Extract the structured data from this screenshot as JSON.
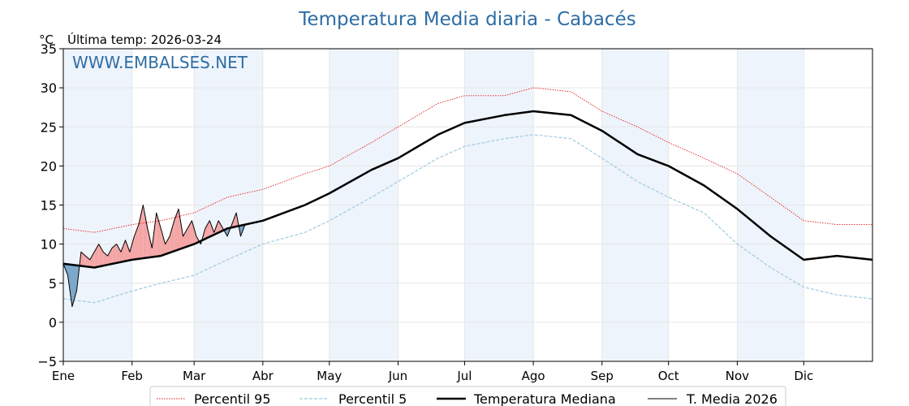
{
  "chart_data": {
    "type": "line",
    "title": "Temperatura Media diaria - Cabacés",
    "unit": "°C",
    "last_temp_label": "Última temp: 2026-03-24",
    "watermark": "WWW.EMBALSES.NET",
    "ylim": [
      -5,
      35
    ],
    "yticks": [
      -5,
      0,
      5,
      10,
      15,
      20,
      25,
      30,
      35
    ],
    "ytick_labels": [
      "−5",
      "0",
      "5",
      "10",
      "15",
      "20",
      "25",
      "30",
      "35"
    ],
    "xlim": [
      1,
      366
    ],
    "months": [
      {
        "label": "Ene",
        "day": 1
      },
      {
        "label": "Feb",
        "day": 32
      },
      {
        "label": "Mar",
        "day": 60
      },
      {
        "label": "Abr",
        "day": 91
      },
      {
        "label": "May",
        "day": 121
      },
      {
        "label": "Jun",
        "day": 152
      },
      {
        "label": "Jul",
        "day": 182
      },
      {
        "label": "Ago",
        "day": 213
      },
      {
        "label": "Sep",
        "day": 244
      },
      {
        "label": "Oct",
        "day": 274
      },
      {
        "label": "Nov",
        "day": 305
      },
      {
        "label": "Dic",
        "day": 335
      }
    ],
    "grid": true,
    "legend_position": "bottom-center",
    "colors": {
      "p95": "#e31a1c",
      "p5": "#9ecae1",
      "median": "#000000",
      "current": "#000000",
      "above_fill": "#f4a6a6",
      "below_fill": "#7ba7c9",
      "band": "#eef4fb",
      "title": "#2e6da4"
    },
    "legend": [
      {
        "key": "p95",
        "label": "Percentil 95"
      },
      {
        "key": "p5",
        "label": "Percentil 5"
      },
      {
        "key": "median",
        "label": "Temperatura Mediana"
      },
      {
        "key": "current",
        "label": "T. Media 2026"
      }
    ],
    "series": [
      {
        "key": "p95",
        "style": "dotted",
        "days": [
          1,
          15,
          32,
          45,
          60,
          75,
          91,
          110,
          121,
          140,
          152,
          170,
          182,
          200,
          213,
          230,
          244,
          260,
          274,
          290,
          305,
          320,
          335,
          350,
          366
        ],
        "values": [
          12,
          11.5,
          12.5,
          13,
          14,
          16,
          17,
          19,
          20,
          23,
          25,
          28,
          29,
          29,
          30,
          29.5,
          27,
          25,
          23,
          21,
          19,
          16,
          13,
          12.5,
          12.5
        ]
      },
      {
        "key": "p5",
        "style": "dashed",
        "days": [
          1,
          15,
          32,
          45,
          60,
          75,
          91,
          110,
          121,
          140,
          152,
          170,
          182,
          200,
          213,
          230,
          244,
          260,
          274,
          290,
          305,
          320,
          335,
          350,
          366
        ],
        "values": [
          3,
          2.5,
          4,
          5,
          6,
          8,
          10,
          11.5,
          13,
          16,
          18,
          21,
          22.5,
          23.5,
          24,
          23.5,
          21,
          18,
          16,
          14,
          10,
          7,
          4.5,
          3.5,
          3
        ]
      },
      {
        "key": "median",
        "style": "solid-thick",
        "days": [
          1,
          15,
          32,
          45,
          60,
          75,
          91,
          110,
          121,
          140,
          152,
          170,
          182,
          200,
          213,
          230,
          244,
          260,
          274,
          290,
          305,
          320,
          335,
          350,
          366
        ],
        "values": [
          7.5,
          7,
          8,
          8.5,
          10,
          12,
          13,
          15,
          16.5,
          19.5,
          21,
          24,
          25.5,
          26.5,
          27,
          26.5,
          24.5,
          21.5,
          20,
          17.5,
          14.5,
          11,
          8,
          8.5,
          8
        ]
      },
      {
        "key": "current",
        "style": "solid-thin",
        "days": [
          1,
          3,
          5,
          7,
          9,
          11,
          13,
          15,
          17,
          19,
          21,
          23,
          25,
          27,
          29,
          31,
          33,
          35,
          37,
          39,
          41,
          43,
          45,
          47,
          49,
          51,
          53,
          55,
          57,
          59,
          61,
          63,
          65,
          67,
          69,
          71,
          73,
          75,
          77,
          79,
          81,
          83
        ],
        "values": [
          7.5,
          6,
          2,
          4,
          9,
          8.5,
          8,
          9,
          10,
          9,
          8.5,
          9.5,
          10,
          9,
          10.5,
          9,
          11,
          12.5,
          15,
          12,
          9.5,
          14,
          12,
          10,
          11,
          13,
          14.5,
          11,
          12,
          13,
          11,
          10,
          12,
          13,
          11.5,
          13,
          12,
          11,
          12.5,
          14,
          11,
          12.5
        ]
      }
    ]
  }
}
